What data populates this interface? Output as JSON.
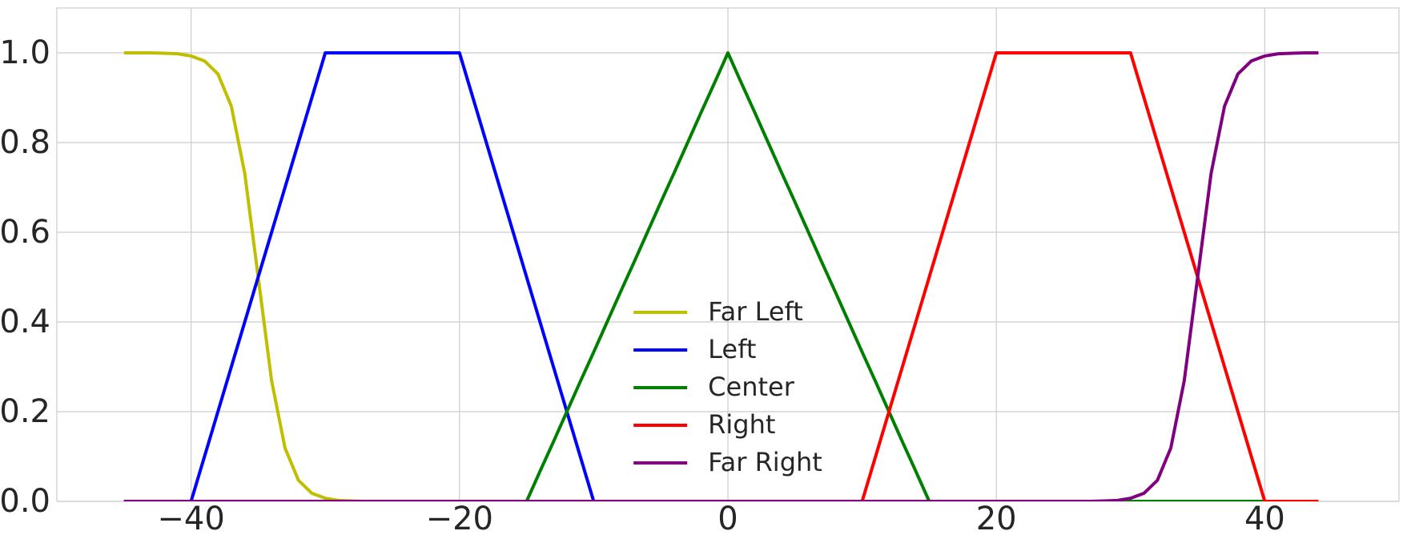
{
  "chart_data": {
    "type": "line",
    "x": [
      -45,
      -44,
      -43,
      -42,
      -41,
      -40,
      -39,
      -38,
      -37,
      -36,
      -35,
      -34,
      -33,
      -32,
      -31,
      -30,
      -29,
      -28,
      -27,
      -26,
      -25,
      -24,
      -23,
      -22,
      -21,
      -20,
      -19,
      -18,
      -17,
      -16,
      -15,
      -14,
      -13,
      -12,
      -11,
      -10,
      -9,
      -8,
      -7,
      -6,
      -5,
      -4,
      -3,
      -2,
      -1,
      0,
      1,
      2,
      3,
      4,
      5,
      6,
      7,
      8,
      9,
      10,
      11,
      12,
      13,
      14,
      15,
      16,
      17,
      18,
      19,
      20,
      21,
      22,
      23,
      24,
      25,
      26,
      27,
      28,
      29,
      30,
      31,
      32,
      33,
      34,
      35,
      36,
      37,
      38,
      39,
      40,
      41,
      42,
      43,
      44
    ],
    "series": [
      {
        "name": "Far Left",
        "color": "#bfbf00",
        "values": [
          1.0,
          1.0,
          1.0,
          0.999,
          0.998,
          0.993,
          0.982,
          0.953,
          0.881,
          0.731,
          0.5,
          0.269,
          0.119,
          0.047,
          0.018,
          0.007,
          0.002,
          0.001,
          0,
          0,
          0,
          0,
          0,
          0,
          0,
          0,
          0,
          0,
          0,
          0,
          0,
          0,
          0,
          0,
          0,
          0,
          0,
          0,
          0,
          0,
          0,
          0,
          0,
          0,
          0,
          0,
          0,
          0,
          0,
          0,
          0,
          0,
          0,
          0,
          0,
          0,
          0,
          0,
          0,
          0,
          0,
          0,
          0,
          0,
          0,
          0,
          0,
          0,
          0,
          0,
          0,
          0,
          0,
          0,
          0,
          0,
          0,
          0,
          0,
          0,
          0,
          0,
          0,
          0,
          0,
          0,
          0,
          0,
          0,
          0
        ]
      },
      {
        "name": "Left",
        "color": "#0000ff",
        "values": [
          0,
          0,
          0,
          0,
          0,
          0,
          0.1,
          0.2,
          0.3,
          0.4,
          0.5,
          0.6,
          0.7,
          0.8,
          0.9,
          1,
          1,
          1,
          1,
          1,
          1,
          1,
          1,
          1,
          1,
          1,
          0.9,
          0.8,
          0.7,
          0.6,
          0.5,
          0.4,
          0.3,
          0.2,
          0.1,
          0,
          0,
          0,
          0,
          0,
          0,
          0,
          0,
          0,
          0,
          0,
          0,
          0,
          0,
          0,
          0,
          0,
          0,
          0,
          0,
          0,
          0,
          0,
          0,
          0,
          0,
          0,
          0,
          0,
          0,
          0,
          0,
          0,
          0,
          0,
          0,
          0,
          0,
          0,
          0,
          0,
          0,
          0,
          0,
          0,
          0,
          0,
          0,
          0,
          0,
          0,
          0,
          0,
          0,
          0
        ]
      },
      {
        "name": "Center",
        "color": "#008000",
        "values": [
          0,
          0,
          0,
          0,
          0,
          0,
          0,
          0,
          0,
          0,
          0,
          0,
          0,
          0,
          0,
          0,
          0,
          0,
          0,
          0,
          0,
          0,
          0,
          0,
          0,
          0,
          0,
          0,
          0,
          0,
          0,
          0.067,
          0.133,
          0.2,
          0.267,
          0.333,
          0.4,
          0.467,
          0.533,
          0.6,
          0.667,
          0.733,
          0.8,
          0.867,
          0.933,
          1,
          0.933,
          0.867,
          0.8,
          0.733,
          0.667,
          0.6,
          0.533,
          0.467,
          0.4,
          0.333,
          0.267,
          0.2,
          0.133,
          0.067,
          0,
          0,
          0,
          0,
          0,
          0,
          0,
          0,
          0,
          0,
          0,
          0,
          0,
          0,
          0,
          0,
          0,
          0,
          0,
          0,
          0,
          0,
          0,
          0,
          0,
          0,
          0,
          0,
          0,
          0
        ]
      },
      {
        "name": "Right",
        "color": "#ff0000",
        "values": [
          0,
          0,
          0,
          0,
          0,
          0,
          0,
          0,
          0,
          0,
          0,
          0,
          0,
          0,
          0,
          0,
          0,
          0,
          0,
          0,
          0,
          0,
          0,
          0,
          0,
          0,
          0,
          0,
          0,
          0,
          0,
          0,
          0,
          0,
          0,
          0,
          0,
          0,
          0,
          0,
          0,
          0,
          0,
          0,
          0,
          0,
          0,
          0,
          0,
          0,
          0,
          0,
          0,
          0,
          0,
          0,
          0.1,
          0.2,
          0.3,
          0.4,
          0.5,
          0.6,
          0.7,
          0.8,
          0.9,
          1,
          1,
          1,
          1,
          1,
          1,
          1,
          1,
          1,
          1,
          1,
          0.9,
          0.8,
          0.7,
          0.6,
          0.5,
          0.4,
          0.3,
          0.2,
          0.1,
          0,
          0,
          0,
          0,
          0
        ]
      },
      {
        "name": "Far Right",
        "color": "#800080",
        "values": [
          0,
          0,
          0,
          0,
          0,
          0,
          0,
          0,
          0,
          0,
          0,
          0,
          0,
          0,
          0,
          0,
          0,
          0,
          0,
          0,
          0,
          0,
          0,
          0,
          0,
          0,
          0,
          0,
          0,
          0,
          0,
          0,
          0,
          0,
          0,
          0,
          0,
          0,
          0,
          0,
          0,
          0,
          0,
          0,
          0,
          0,
          0,
          0,
          0,
          0,
          0,
          0,
          0,
          0,
          0,
          0,
          0,
          0,
          0,
          0,
          0,
          0,
          0,
          0,
          0,
          0,
          0,
          0,
          0,
          0,
          0,
          0,
          0,
          0.001,
          0.002,
          0.007,
          0.018,
          0.047,
          0.119,
          0.269,
          0.5,
          0.731,
          0.881,
          0.953,
          0.982,
          0.993,
          0.998,
          0.999,
          1.0,
          1.0
        ]
      }
    ],
    "xlim": [
      -50,
      50
    ],
    "xticks": [
      {
        "value": -40,
        "label": "−40"
      },
      {
        "value": -20,
        "label": "−20"
      },
      0,
      20,
      40
    ],
    "ylim": [
      0,
      1.1
    ],
    "yticks": [
      {
        "value": 0,
        "label": "0.0"
      },
      0.2,
      0.4,
      0.6,
      0.8,
      {
        "value": 1,
        "label": "1.0"
      }
    ],
    "grid": true,
    "legend": "lower center"
  }
}
